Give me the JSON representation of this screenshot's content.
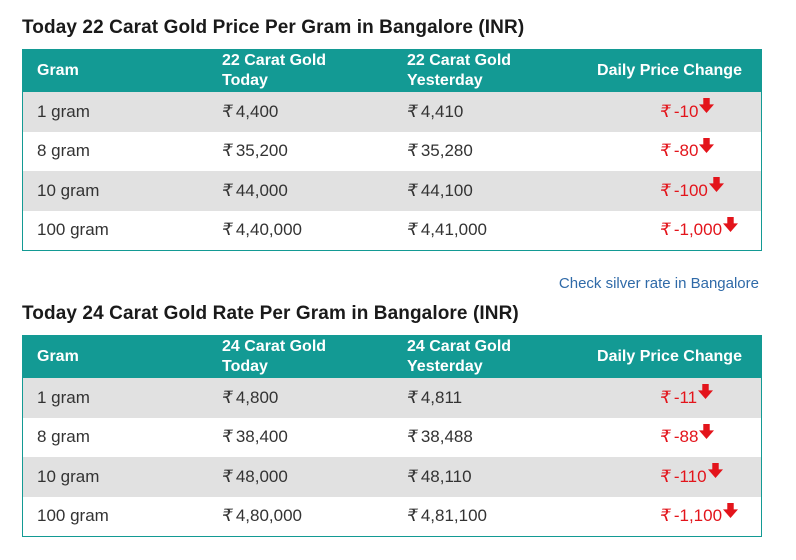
{
  "currency_symbol": "₹",
  "colors": {
    "header_bg": "#139a94",
    "stripe": "#e1e1e1",
    "decrease": "#e3141b",
    "link": "#2f6aa8"
  },
  "table22": {
    "title": "Today 22 Carat Gold Price Per Gram in Bangalore (INR)",
    "headers": {
      "gram": "Gram",
      "today_l1": "22 Carat Gold",
      "today_l2": "Today",
      "yest_l1": "22 Carat Gold",
      "yest_l2": "Yesterday",
      "change": "Daily Price Change"
    },
    "rows": [
      {
        "gram": "1 gram",
        "today": "4,400",
        "yesterday": "4,410",
        "change": "-10",
        "direction": "down-arrow-icon"
      },
      {
        "gram": "8 gram",
        "today": "35,200",
        "yesterday": "35,280",
        "change": "-80",
        "direction": "down-arrow-icon"
      },
      {
        "gram": "10 gram",
        "today": "44,000",
        "yesterday": "44,100",
        "change": "-100",
        "direction": "down-arrow-icon"
      },
      {
        "gram": "100 gram",
        "today": "4,40,000",
        "yesterday": "4,41,000",
        "change": "-1,000",
        "direction": "down-arrow-icon"
      }
    ]
  },
  "silver_link": "Check silver rate in Bangalore",
  "table24": {
    "title": "Today 24 Carat Gold Rate Per Gram in Bangalore (INR)",
    "headers": {
      "gram": "Gram",
      "today_l1": "24 Carat Gold",
      "today_l2": "Today",
      "yest_l1": "24 Carat Gold",
      "yest_l2": "Yesterday",
      "change": "Daily Price Change"
    },
    "rows": [
      {
        "gram": "1 gram",
        "today": "4,800",
        "yesterday": "4,811",
        "change": "-11",
        "direction": "down-arrow-icon"
      },
      {
        "gram": "8 gram",
        "today": "38,400",
        "yesterday": "38,488",
        "change": "-88",
        "direction": "down-arrow-icon"
      },
      {
        "gram": "10 gram",
        "today": "48,000",
        "yesterday": "48,110",
        "change": "-110",
        "direction": "down-arrow-icon"
      },
      {
        "gram": "100 gram",
        "today": "4,80,000",
        "yesterday": "4,81,100",
        "change": "-1,100",
        "direction": "down-arrow-icon"
      }
    ]
  }
}
